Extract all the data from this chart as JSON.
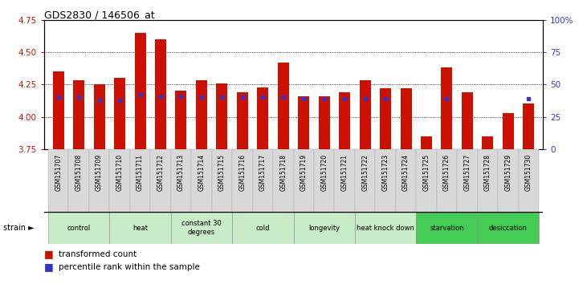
{
  "title": "GDS2830 / 146506_at",
  "samples": [
    "GSM151707",
    "GSM151708",
    "GSM151709",
    "GSM151710",
    "GSM151711",
    "GSM151712",
    "GSM151713",
    "GSM151714",
    "GSM151715",
    "GSM151716",
    "GSM151717",
    "GSM151718",
    "GSM151719",
    "GSM151720",
    "GSM151721",
    "GSM151722",
    "GSM151723",
    "GSM151724",
    "GSM151725",
    "GSM151726",
    "GSM151727",
    "GSM151728",
    "GSM151729",
    "GSM151730"
  ],
  "red_values": [
    4.35,
    4.28,
    4.25,
    4.3,
    4.65,
    4.6,
    4.2,
    4.28,
    4.26,
    4.19,
    4.23,
    4.42,
    4.16,
    4.16,
    4.19,
    4.28,
    4.22,
    4.22,
    3.85,
    4.38,
    4.19,
    3.85,
    4.03,
    4.1
  ],
  "blue_percentiles": [
    40,
    40,
    38,
    38,
    42,
    41,
    41,
    40,
    40,
    40,
    40,
    40,
    39,
    39,
    39,
    39,
    39,
    null,
    null,
    39,
    null,
    null,
    null,
    39
  ],
  "groups": [
    {
      "label": "control",
      "indices": [
        0,
        1,
        2
      ]
    },
    {
      "label": "heat",
      "indices": [
        3,
        4,
        5
      ]
    },
    {
      "label": "constant 30\ndegrees",
      "indices": [
        6,
        7,
        8
      ]
    },
    {
      "label": "cold",
      "indices": [
        9,
        10,
        11
      ]
    },
    {
      "label": "longevity",
      "indices": [
        12,
        13,
        14
      ]
    },
    {
      "label": "heat knock down",
      "indices": [
        15,
        16,
        17
      ]
    },
    {
      "label": "starvation",
      "indices": [
        18,
        19,
        20
      ]
    },
    {
      "label": "desiccation",
      "indices": [
        21,
        22,
        23
      ]
    }
  ],
  "group_colors": [
    "#c8ecc8",
    "#c8ecc8",
    "#c8ecc8",
    "#c8ecc8",
    "#c8ecc8",
    "#c8ecc8",
    "#44cc55",
    "#44cc55"
  ],
  "ylim_left": [
    3.75,
    4.75
  ],
  "ylim_right": [
    0,
    100
  ],
  "yticks_left": [
    3.75,
    4.0,
    4.25,
    4.5,
    4.75
  ],
  "yticks_right": [
    0,
    25,
    50,
    75,
    100
  ],
  "red_color": "#cc1100",
  "blue_color": "#3333cc",
  "bar_width": 0.55
}
